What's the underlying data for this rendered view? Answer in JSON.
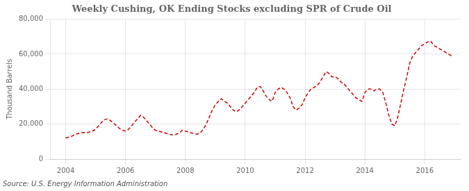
{
  "chart_data": {
    "type": "line",
    "title": "Weekly Cushing, OK Ending Stocks excluding SPR of Crude Oil",
    "ylabel": "Thousand Barrels",
    "annotation": "Source: U.S. Energy Information Administration",
    "color": "#CC0000",
    "line_style": "dashed",
    "grid": true,
    "xlim": [
      2003.5,
      2017.2
    ],
    "xticks": [
      2004,
      2006,
      2008,
      2010,
      2012,
      2014,
      2016
    ],
    "ylim": [
      0,
      80000
    ],
    "yticks": [
      0,
      {
        "value": 20000,
        "label": "20,000"
      },
      {
        "value": 40000,
        "label": "40,000"
      },
      {
        "value": 60000,
        "label": "60,000"
      },
      {
        "value": 80000,
        "label": "80,000"
      }
    ],
    "x": [
      2004.0,
      2004.1,
      2004.2,
      2004.3,
      2004.4,
      2004.5,
      2004.6,
      2004.7,
      2004.8,
      2004.9,
      2005.0,
      2005.1,
      2005.2,
      2005.3,
      2005.4,
      2005.5,
      2005.6,
      2005.7,
      2005.8,
      2005.9,
      2006.0,
      2006.1,
      2006.2,
      2006.3,
      2006.4,
      2006.5,
      2006.6,
      2006.7,
      2006.8,
      2006.9,
      2007.0,
      2007.1,
      2007.2,
      2007.3,
      2007.4,
      2007.5,
      2007.6,
      2007.7,
      2007.8,
      2007.9,
      2008.0,
      2008.1,
      2008.2,
      2008.3,
      2008.4,
      2008.5,
      2008.6,
      2008.7,
      2008.8,
      2008.9,
      2009.0,
      2009.1,
      2009.2,
      2009.3,
      2009.4,
      2009.5,
      2009.6,
      2009.7,
      2009.8,
      2009.9,
      2010.0,
      2010.1,
      2010.2,
      2010.3,
      2010.4,
      2010.5,
      2010.6,
      2010.7,
      2010.8,
      2010.9,
      2011.0,
      2011.1,
      2011.2,
      2011.3,
      2011.4,
      2011.5,
      2011.6,
      2011.7,
      2011.8,
      2011.9,
      2012.0,
      2012.1,
      2012.2,
      2012.3,
      2012.4,
      2012.5,
      2012.6,
      2012.7,
      2012.8,
      2012.9,
      2013.0,
      2013.1,
      2013.2,
      2013.3,
      2013.4,
      2013.5,
      2013.6,
      2013.7,
      2013.8,
      2013.9,
      2014.0,
      2014.1,
      2014.2,
      2014.3,
      2014.4,
      2014.5,
      2014.6,
      2014.7,
      2014.8,
      2014.9,
      2015.0,
      2015.1,
      2015.2,
      2015.3,
      2015.4,
      2015.5,
      2015.6,
      2015.7,
      2015.8,
      2015.9,
      2016.0,
      2016.1,
      2016.2,
      2016.3,
      2016.4,
      2016.5,
      2016.6,
      2016.7,
      2016.8,
      2016.9
    ],
    "values": [
      12000,
      12500,
      13000,
      14000,
      14500,
      15000,
      15200,
      15000,
      15500,
      16000,
      17000,
      19000,
      21000,
      22500,
      23000,
      22000,
      20500,
      19000,
      17500,
      16500,
      16000,
      17000,
      19000,
      21000,
      23000,
      25000,
      24000,
      22000,
      20000,
      18000,
      16500,
      16000,
      15500,
      15000,
      14500,
      14000,
      13800,
      14200,
      15000,
      16500,
      16000,
      15500,
      15000,
      14500,
      14200,
      15000,
      17000,
      20000,
      24000,
      28000,
      31000,
      33000,
      34500,
      33000,
      32000,
      30000,
      28000,
      27000,
      28000,
      30000,
      32000,
      34000,
      36000,
      38000,
      41000,
      41500,
      39000,
      36000,
      34000,
      33000,
      38000,
      40000,
      41000,
      40000,
      38000,
      35000,
      30000,
      28000,
      29000,
      31000,
      35000,
      38000,
      40000,
      41000,
      42000,
      44000,
      47000,
      50000,
      49000,
      47000,
      47000,
      46000,
      44000,
      43000,
      41000,
      39000,
      37000,
      35000,
      34000,
      33000,
      38000,
      40000,
      40000,
      39000,
      40000,
      40000,
      38000,
      32000,
      25000,
      20000,
      19000,
      24000,
      32000,
      40000,
      47000,
      55000,
      59000,
      61000,
      63000,
      65000,
      66000,
      67000,
      67500,
      65000,
      64000,
      63000,
      62000,
      61000,
      60000,
      59000
    ]
  }
}
